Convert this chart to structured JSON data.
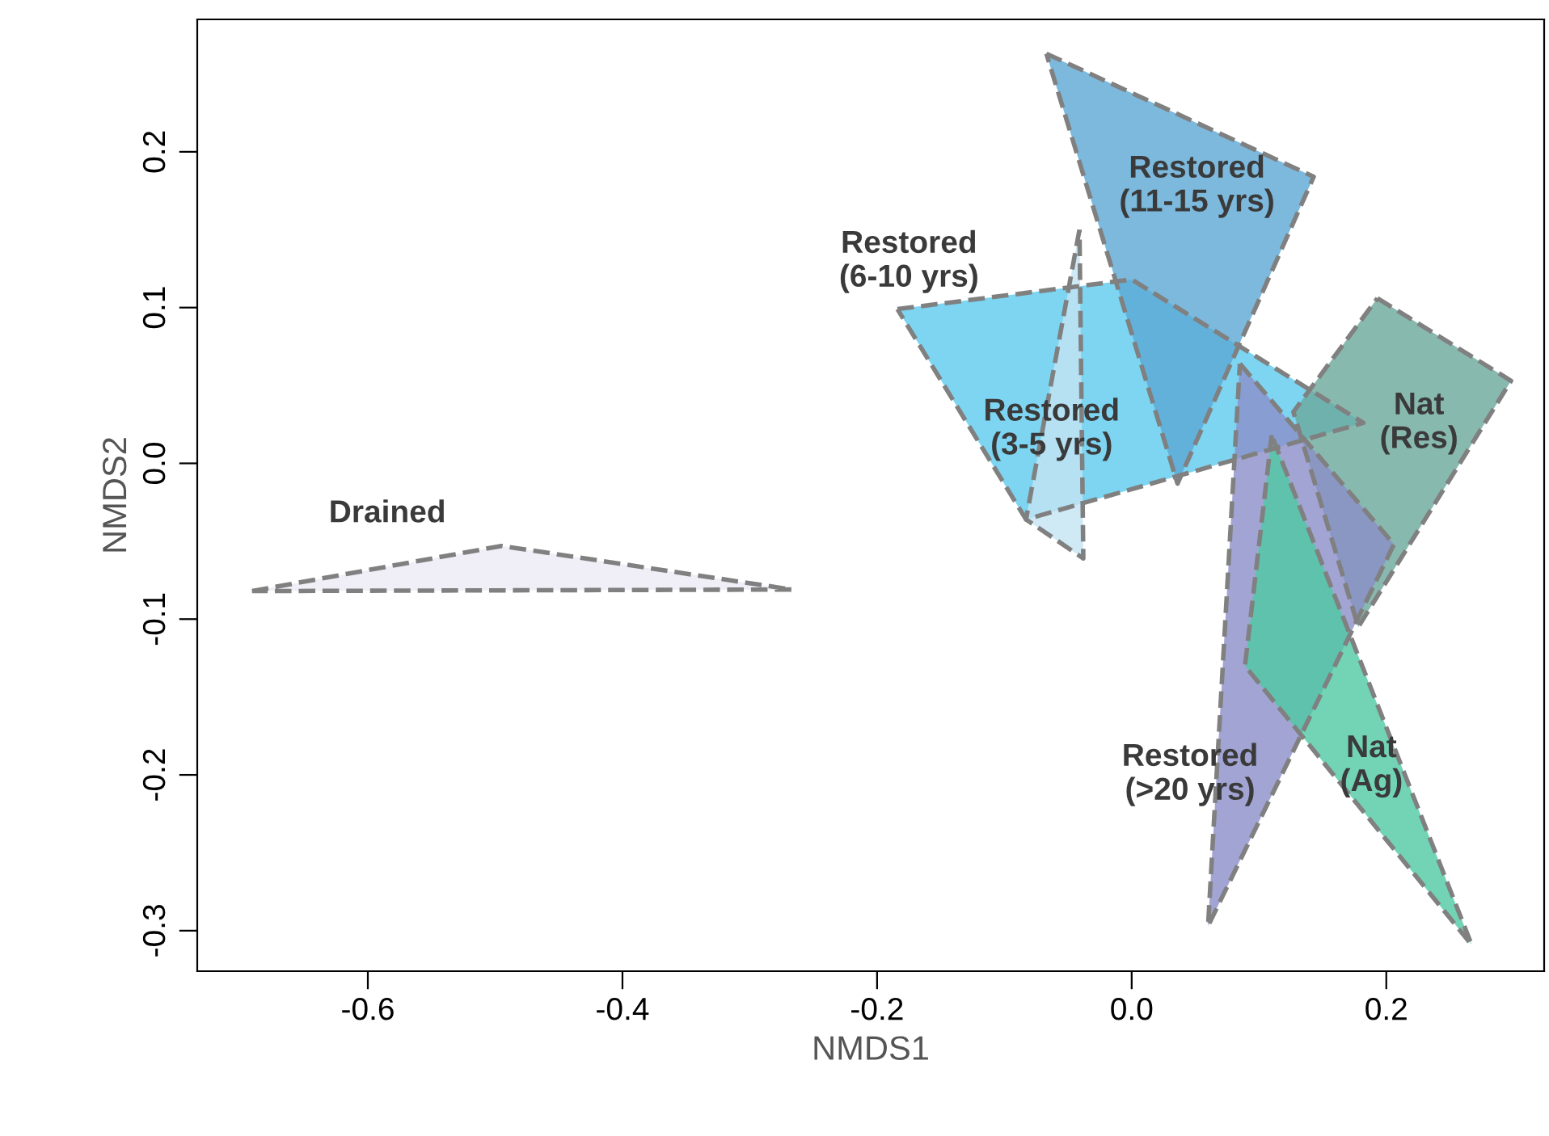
{
  "chart_data": {
    "type": "area",
    "xlabel": "NMDS1",
    "ylabel": "NMDS2",
    "xlim": [
      -0.734,
      0.324
    ],
    "ylim": [
      -0.326,
      0.285
    ],
    "xticks": [
      -0.6,
      -0.4,
      -0.2,
      {
        "value": 0.0,
        "label": "0.0"
      },
      0.2
    ],
    "yticks": [
      -0.3,
      -0.2,
      -0.1,
      {
        "value": 0.0,
        "label": "0.0"
      },
      0.1,
      0.2
    ],
    "grid": false,
    "legend": false,
    "marker": "none",
    "line_style": "dashed",
    "series": [
      {
        "name": "Drained",
        "color": "#ecebf5",
        "x": [
          -0.691,
          -0.495,
          -0.267,
          -0.691
        ],
        "values": [
          -0.082,
          -0.053,
          -0.081,
          -0.082
        ]
      },
      {
        "name": "Restored\n(6-10 yrs)",
        "color": "#5ccbef",
        "x": [
          -0.184,
          0.0,
          0.182,
          -0.083,
          -0.184
        ],
        "values": [
          0.099,
          0.118,
          0.026,
          -0.036,
          0.099
        ]
      },
      {
        "name": "Restored\n(3-5 yrs)",
        "color": "#c3e3f3",
        "x": [
          -0.041,
          -0.083,
          -0.038,
          -0.041
        ],
        "values": [
          0.15,
          -0.036,
          -0.061,
          0.15
        ]
      },
      {
        "name": "Restored\n(11-15 yrs)",
        "color": "#5ba8d4",
        "x": [
          -0.067,
          0.143,
          0.036,
          -0.067
        ],
        "values": [
          0.263,
          0.184,
          -0.013,
          0.263
        ]
      },
      {
        "name": "Nat\n(Res)",
        "color": "#6aa89b",
        "x": [
          0.193,
          0.298,
          0.178,
          0.127,
          0.193
        ],
        "values": [
          0.106,
          0.053,
          -0.105,
          0.033,
          0.106
        ]
      },
      {
        "name": "Restored\n(>20 yrs)",
        "color": "#8b8fc8",
        "x": [
          0.085,
          0.206,
          0.06,
          0.085
        ],
        "values": [
          0.064,
          -0.052,
          -0.297,
          0.064
        ]
      },
      {
        "name": "Nat\n(Ag)",
        "color": "#4fc9a2",
        "x": [
          0.11,
          0.089,
          0.267,
          0.11
        ],
        "values": [
          0.018,
          -0.13,
          -0.309,
          0.018
        ]
      }
    ]
  }
}
